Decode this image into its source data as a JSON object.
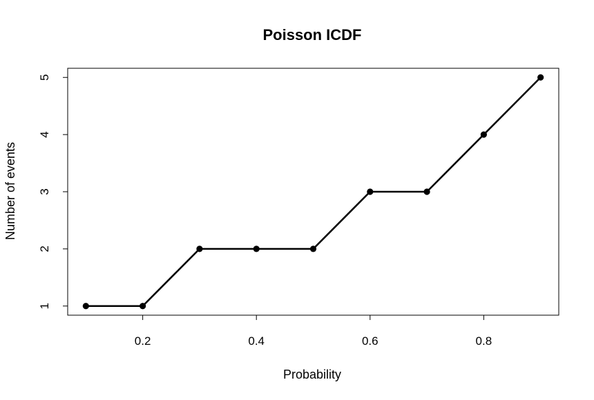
{
  "chart_data": {
    "type": "line",
    "title": "Poisson ICDF",
    "xlabel": "Probability",
    "ylabel": "Number of events",
    "x": [
      0.1,
      0.2,
      0.3,
      0.4,
      0.5,
      0.6,
      0.7,
      0.8,
      0.9
    ],
    "y": [
      1,
      1,
      2,
      2,
      2,
      3,
      3,
      4,
      5
    ],
    "xlim": [
      0.068,
      0.932
    ],
    "ylim": [
      0.84,
      5.16
    ],
    "xticks": [
      0.2,
      0.4,
      0.6,
      0.8
    ],
    "xtick_labels": [
      "0.2",
      "0.4",
      "0.6",
      "0.8"
    ],
    "yticks": [
      1,
      2,
      3,
      4,
      5
    ],
    "ytick_labels": [
      "1",
      "2",
      "3",
      "4",
      "5"
    ],
    "grid": false,
    "markers": "filled-circle",
    "line_color": "#000000"
  }
}
